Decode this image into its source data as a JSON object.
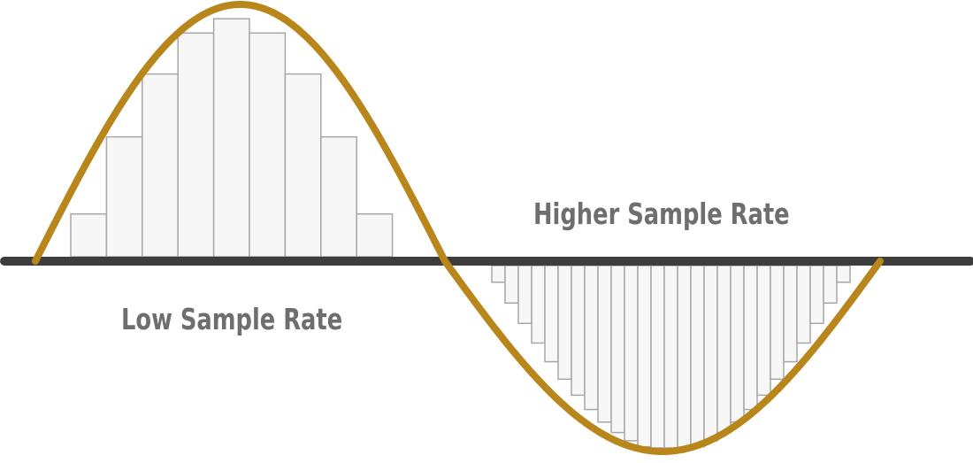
{
  "labels": {
    "higher_sample_rate": "Higher Sample Rate",
    "low_sample_rate": "Low Sample Rate"
  },
  "samples": {
    "low_rate_count": 9,
    "high_rate_count": 27
  },
  "colors": {
    "wave": "#b8861b",
    "axis": "#3d3d3d",
    "bar_fill": "#f7f7f7",
    "bar_stroke": "#a7a7a7",
    "label_text": "#6e6e6e"
  }
}
